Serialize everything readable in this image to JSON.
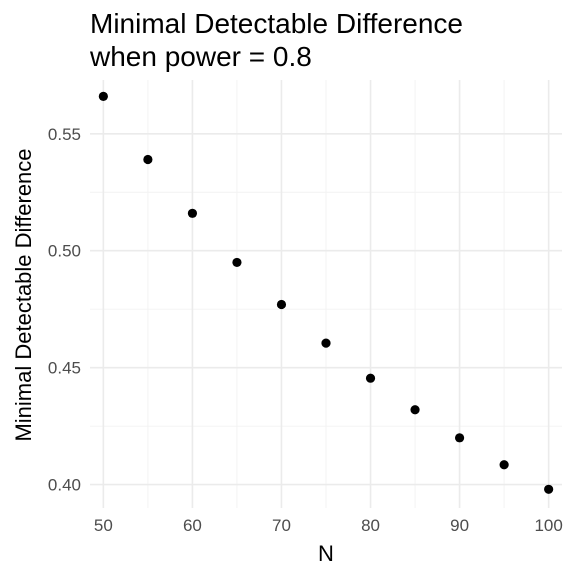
{
  "chart_data": {
    "type": "scatter",
    "title": "Minimal Detectable Difference",
    "subtitle": "when power = 0.8",
    "xlabel": "N",
    "ylabel": "Minimal Detectable Difference",
    "x": [
      50,
      55,
      60,
      65,
      70,
      75,
      80,
      85,
      90,
      95,
      100
    ],
    "y": [
      0.566,
      0.539,
      0.516,
      0.495,
      0.477,
      0.4605,
      0.4455,
      0.432,
      0.42,
      0.4085,
      0.398
    ],
    "x_ticks": [
      50,
      60,
      70,
      80,
      90,
      100
    ],
    "y_ticks": [
      0.4,
      0.45,
      0.5,
      0.55
    ],
    "x_tick_labels": [
      "50",
      "60",
      "70",
      "80",
      "90",
      "100"
    ],
    "y_tick_labels": [
      "0.40",
      "0.45",
      "0.50",
      "0.55"
    ],
    "xlim": [
      48.5,
      101.5
    ],
    "ylim": [
      0.39,
      0.573
    ],
    "grid": true,
    "legend": "none",
    "point_color": "#000000",
    "grid_color": "#ebebeb",
    "background": "#ffffff"
  }
}
